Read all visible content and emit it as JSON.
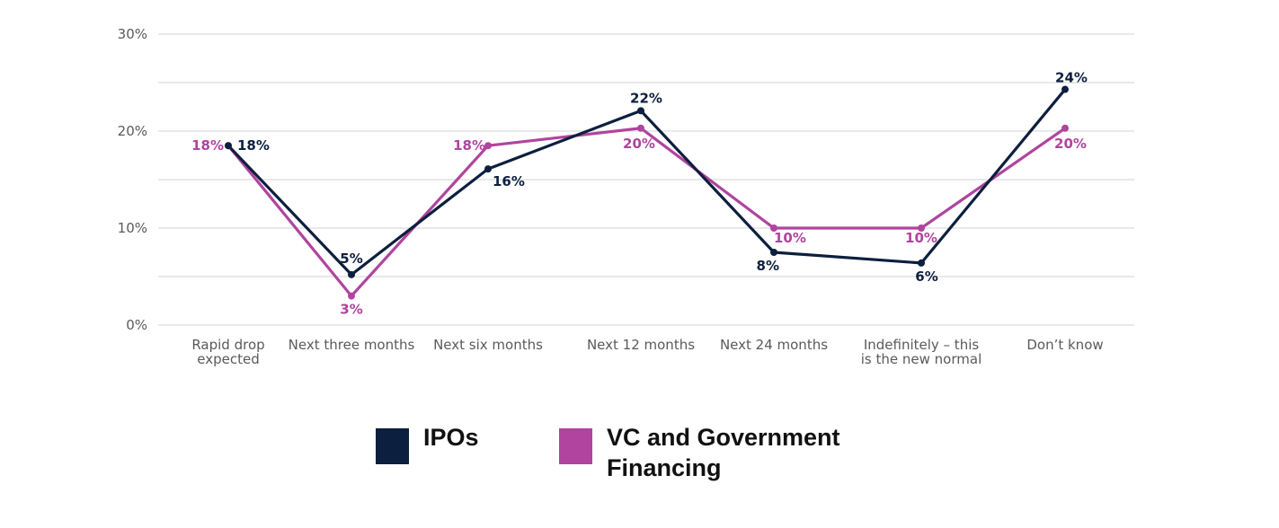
{
  "chart_data": {
    "type": "line",
    "title": "",
    "xlabel": "",
    "ylabel": "",
    "ylim": [
      0,
      30
    ],
    "y_ticks": [
      "0%",
      "10%",
      "20%",
      "30%"
    ],
    "y_tick_values": [
      0,
      10,
      20,
      30
    ],
    "grid": true,
    "legend_position": "bottom",
    "categories": [
      [
        "Rapid drop",
        "expected"
      ],
      [
        "Next three months"
      ],
      [
        "Next six months"
      ],
      [
        "Next 12 months"
      ],
      [
        "Next 24 months"
      ],
      [
        "Indefinitely – this",
        "is the new normal"
      ],
      [
        "Don’t know"
      ]
    ],
    "series": [
      {
        "name": "IPOs",
        "color": "#0d1f3e",
        "values": [
          18.5,
          5.2,
          16.1,
          22.1,
          7.5,
          6.4,
          24.3
        ],
        "labels": [
          "18%",
          "5%",
          "16%",
          "22%",
          "8%",
          "6%",
          "24%"
        ]
      },
      {
        "name": "VC and Government Financing",
        "color": "#b0449e",
        "values": [
          18.5,
          3.0,
          18.5,
          20.3,
          10.0,
          10.0,
          20.3
        ],
        "labels": [
          "18%",
          "3%",
          "18%",
          "20%",
          "10%",
          "10%",
          "20%"
        ]
      }
    ]
  },
  "legend": {
    "items": [
      {
        "label_lines": [
          "IPOs"
        ],
        "color": "#0d1f3e"
      },
      {
        "label_lines": [
          "VC and Government",
          "Financing"
        ],
        "color": "#b0449e"
      }
    ]
  }
}
